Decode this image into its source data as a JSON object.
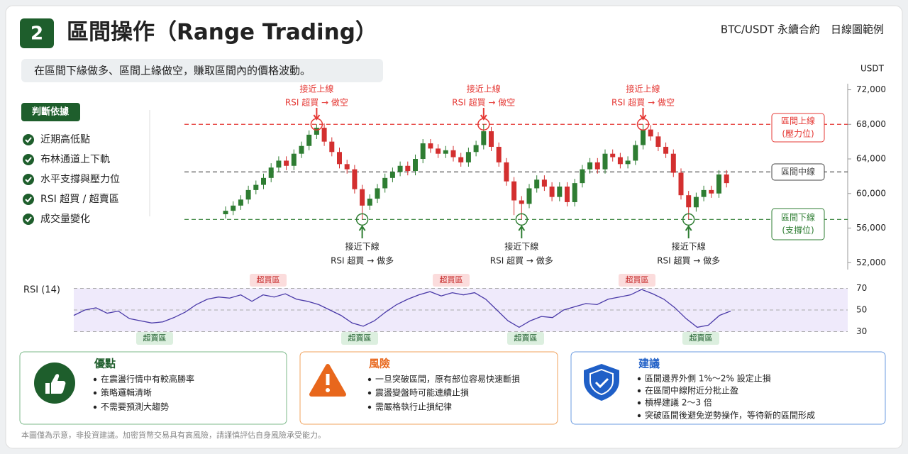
{
  "header": {
    "number": "2",
    "title": "區間操作（Range Trading）",
    "context": "BTC/USDT 永續合約　日線圖範例",
    "subtitle": "在區間下緣做多、區間上緣做空，賺取區間內的價格波動。"
  },
  "criteria": {
    "title": "判斷依據",
    "items": [
      "近期高低點",
      "布林通道上下軌",
      "水平支撐與壓力位",
      "RSI 超買 / 超賣區",
      "成交量變化"
    ]
  },
  "chart_data": [
    {
      "type": "candlestick",
      "unit": "USDT",
      "up_color": "#2e7d32",
      "down_color": "#d32f2f",
      "ylim": [
        51200,
        72700
      ],
      "yticks": [
        {
          "value": 52000,
          "label": "52,000"
        },
        {
          "value": 56000,
          "label": "56,000"
        },
        {
          "value": 60000,
          "label": "60,000"
        },
        {
          "value": 64000,
          "label": "64,000"
        },
        {
          "value": 68000,
          "label": "68,000"
        },
        {
          "value": 72000,
          "label": "72,000"
        }
      ],
      "levels": [
        {
          "value": 68000,
          "label": [
            "區間上線",
            "(壓力位)"
          ],
          "color": "#e53935"
        },
        {
          "value": 62500,
          "label": [
            "區間中線"
          ],
          "color": "#444444"
        },
        {
          "value": 57000,
          "label": [
            "區間下線",
            "(支撐位)"
          ],
          "color": "#2e7d32"
        }
      ],
      "annotations": {
        "top": [
          "接近上線",
          "RSI 超買 → 做空"
        ],
        "bottom": [
          "接近下線",
          "RSI 超買 → 做多"
        ]
      },
      "ohlc": [
        [
          57600,
          58500,
          57100,
          58000
        ],
        [
          58000,
          59100,
          57500,
          58600
        ],
        [
          58600,
          59800,
          58100,
          59300
        ],
        [
          59300,
          60900,
          58800,
          60400
        ],
        [
          60400,
          61500,
          59900,
          61000
        ],
        [
          61000,
          62300,
          60500,
          61800
        ],
        [
          61800,
          63500,
          61300,
          63000
        ],
        [
          63000,
          64300,
          62500,
          63800
        ],
        [
          63800,
          64300,
          62700,
          63200
        ],
        [
          63200,
          65100,
          62700,
          64600
        ],
        [
          64600,
          66000,
          64100,
          65500
        ],
        [
          65500,
          67300,
          65000,
          66800
        ],
        [
          66800,
          68000,
          66300,
          67600
        ],
        [
          67600,
          68100,
          65500,
          66000
        ],
        [
          66000,
          66500,
          64300,
          64800
        ],
        [
          64800,
          65300,
          62900,
          63400
        ],
        [
          63400,
          63900,
          62300,
          62800
        ],
        [
          62800,
          63300,
          60000,
          60500
        ],
        [
          60500,
          61000,
          57000,
          58600
        ],
        [
          58600,
          59900,
          58100,
          59400
        ],
        [
          59400,
          61100,
          58900,
          60600
        ],
        [
          60600,
          62300,
          60100,
          61800
        ],
        [
          61800,
          63000,
          61300,
          62500
        ],
        [
          62500,
          63700,
          62000,
          63200
        ],
        [
          63200,
          63700,
          62100,
          62600
        ],
        [
          62600,
          64500,
          62100,
          64000
        ],
        [
          64000,
          66300,
          63500,
          65800
        ],
        [
          65800,
          66300,
          64700,
          65200
        ],
        [
          65200,
          65700,
          64100,
          64600
        ],
        [
          64600,
          65500,
          64100,
          65000
        ],
        [
          65000,
          65500,
          63700,
          64200
        ],
        [
          64200,
          64700,
          63100,
          63600
        ],
        [
          63600,
          65300,
          63100,
          64800
        ],
        [
          64800,
          66100,
          64300,
          65600
        ],
        [
          65600,
          68000,
          65100,
          67200
        ],
        [
          67200,
          67700,
          64900,
          65400
        ],
        [
          65400,
          65900,
          63100,
          63600
        ],
        [
          63600,
          64100,
          60900,
          61400
        ],
        [
          61400,
          61900,
          57500,
          59200
        ],
        [
          59200,
          59700,
          57000,
          58800
        ],
        [
          58800,
          61100,
          58300,
          60600
        ],
        [
          60600,
          62100,
          60100,
          61600
        ],
        [
          61600,
          62100,
          60300,
          60800
        ],
        [
          60800,
          61300,
          59100,
          59600
        ],
        [
          59600,
          61300,
          59100,
          60800
        ],
        [
          60800,
          61300,
          58500,
          59000
        ],
        [
          59000,
          61700,
          58500,
          61200
        ],
        [
          61200,
          63300,
          60700,
          62800
        ],
        [
          62800,
          64100,
          62300,
          63600
        ],
        [
          63600,
          64100,
          62300,
          62800
        ],
        [
          62800,
          65100,
          62300,
          64600
        ],
        [
          64600,
          65100,
          63700,
          64200
        ],
        [
          64200,
          64700,
          62900,
          63400
        ],
        [
          63400,
          64300,
          62900,
          63800
        ],
        [
          63800,
          66100,
          63300,
          65600
        ],
        [
          65600,
          68000,
          65100,
          67400
        ],
        [
          67400,
          67900,
          66100,
          66600
        ],
        [
          66600,
          67100,
          64900,
          65400
        ],
        [
          65400,
          65900,
          64100,
          64600
        ],
        [
          64600,
          65100,
          61900,
          62400
        ],
        [
          62400,
          62900,
          59300,
          59800
        ],
        [
          59800,
          60300,
          57000,
          58400
        ],
        [
          58400,
          60100,
          57900,
          59600
        ],
        [
          59600,
          60900,
          59100,
          60400
        ],
        [
          60400,
          60900,
          59500,
          60000
        ],
        [
          60000,
          62700,
          59500,
          62200
        ],
        [
          62200,
          62700,
          60700,
          61200
        ]
      ]
    },
    {
      "type": "line",
      "title": "RSI (14)",
      "color": "#4a3aa8",
      "zone_color": "#efeafb",
      "ylim": [
        29,
        71
      ],
      "yticks": [
        30,
        50,
        70
      ],
      "zone_labels": {
        "overbought": "超買區",
        "oversold": "超賣區"
      },
      "values": [
        45,
        50,
        52,
        47,
        49,
        42,
        40,
        38,
        39,
        43,
        48,
        55,
        60,
        62,
        61,
        64,
        58,
        64,
        62,
        65,
        60,
        58,
        55,
        50,
        45,
        38,
        35,
        40,
        48,
        55,
        60,
        64,
        67,
        63,
        66,
        64,
        66,
        60,
        50,
        40,
        34,
        40,
        44,
        43,
        50,
        53,
        56,
        55,
        60,
        62,
        64,
        69,
        65,
        60,
        52,
        42,
        34,
        36,
        45,
        49
      ]
    }
  ],
  "cards": [
    {
      "title": "優點",
      "items": [
        "在震盪行情中有較高勝率",
        "策略邏輯清晰",
        "不需要預測大趨勢"
      ]
    },
    {
      "title": "風險",
      "items": [
        "一旦突破區間，原有部位容易快速斷損",
        "震盪變盤時可能連續止損",
        "需嚴格執行止損紀律"
      ]
    },
    {
      "title": "建議",
      "items": [
        "區間邊界外側 1%～2% 設定止損",
        "在區間中線附近分批止盈",
        "槓桿建議 2～3 倍",
        "突破區間後避免逆勢操作，等待新的區間形成"
      ]
    }
  ],
  "footer": "本圖僅為示意，非投資建議。加密貨幣交易具有高風險，請謹慎評估自身風險承受能力。"
}
